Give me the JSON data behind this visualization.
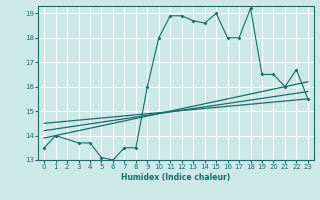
{
  "title": "",
  "xlabel": "Humidex (Indice chaleur)",
  "xlim": [
    -0.5,
    23.5
  ],
  "ylim": [
    13,
    19.3
  ],
  "yticks": [
    13,
    14,
    15,
    16,
    17,
    18,
    19
  ],
  "xticks": [
    0,
    1,
    2,
    3,
    4,
    5,
    6,
    7,
    8,
    9,
    10,
    11,
    12,
    13,
    14,
    15,
    16,
    17,
    18,
    19,
    20,
    21,
    22,
    23
  ],
  "bg_color": "#cce8e8",
  "line_color": "#1a6b6b",
  "grid_color": "#ffffff",
  "line1_x": [
    0,
    1,
    3,
    4,
    5,
    6,
    7,
    8,
    9,
    10,
    11,
    12,
    13,
    14,
    15,
    16,
    17,
    18,
    19,
    20,
    21,
    22,
    23
  ],
  "line1_y": [
    13.5,
    14.0,
    13.7,
    13.7,
    13.1,
    13.0,
    13.5,
    13.5,
    16.0,
    18.0,
    18.9,
    18.9,
    18.7,
    18.6,
    19.0,
    18.0,
    18.0,
    19.2,
    16.5,
    16.5,
    16.0,
    16.7,
    15.5
  ],
  "line2_x": [
    0,
    23
  ],
  "line2_y": [
    13.9,
    16.2
  ],
  "line3_x": [
    0,
    23
  ],
  "line3_y": [
    14.2,
    15.8
  ],
  "line4_x": [
    0,
    23
  ],
  "line4_y": [
    14.5,
    15.5
  ]
}
